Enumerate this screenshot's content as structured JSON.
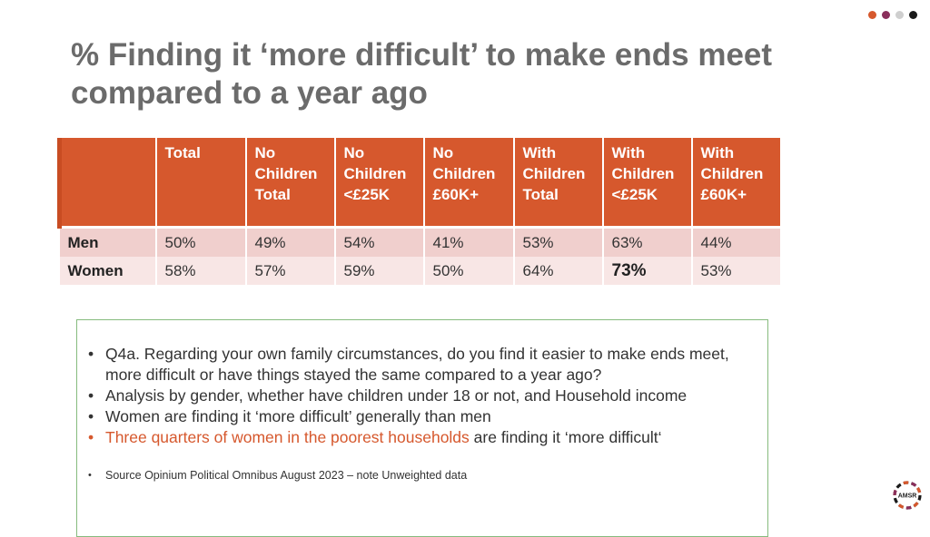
{
  "slide": {
    "title": "% Finding it ‘more difficult’ to make ends meet compared to a year ago",
    "dot_colors": [
      "#d6582d",
      "#8a2f5c",
      "#cfcfcf",
      "#1a1a1a"
    ]
  },
  "table": {
    "headers": [
      "",
      "Total",
      "No\nChildren\nTotal",
      "No\nChildren\n<£25K",
      "No\nChildren\n£60K+",
      "With\nChildren\nTotal",
      "With\nChildren\n<£25K",
      "With\nChildren\n£60K+"
    ],
    "rows": [
      {
        "label": "Men",
        "values": [
          "50%",
          "49%",
          "54%",
          "41%",
          "53%",
          "63%",
          "44%"
        ]
      },
      {
        "label": "Women",
        "values": [
          "58%",
          "57%",
          "59%",
          "50%",
          "64%",
          "73%",
          "53%"
        ]
      }
    ],
    "header_color": "#d6582d"
  },
  "notes": {
    "q4a": "Q4a. Regarding your own family circumstances, do you find it easier to make ends meet, more difficult or have things stayed the same compared to a year ago?",
    "analysis": "Analysis by gender, whether have children under 18 or not, and Household income",
    "women": "Women are finding it ‘more difficult’ generally than men",
    "highlight": "Three quarters of women in the poorest households",
    "highlight_rest": " are finding it ‘more difficult‘",
    "source": "Source Opinium Political Omnibus August 2023 – note Unweighted data",
    "bullet": "•"
  },
  "logo": {
    "text": "AMSR"
  }
}
